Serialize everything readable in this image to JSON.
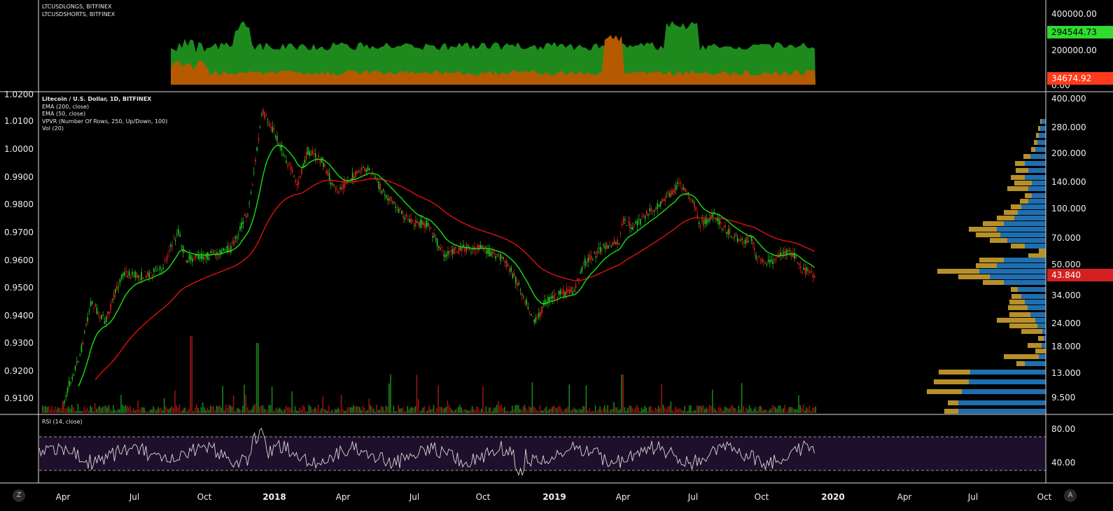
{
  "top_pane": {
    "legend": [
      "LTCUSDLONGS, BITFINEX",
      "LTCUSDSHORTS, BITFINEX"
    ],
    "axis_labels": [
      "400000.00",
      "200000.00",
      "0.00"
    ],
    "longs_value": "294544.73",
    "shorts_value": "34674.92",
    "colors": {
      "longs": "#1e8a1e",
      "shorts": "#b55a00",
      "longs_tag": "#2fdc2f",
      "shorts_tag": "#ff4422"
    }
  },
  "main_pane": {
    "legend": [
      "Litecoin / U.S. Dollar, 1D, BITFINEX",
      "EMA (200, close)",
      "EMA (50, close)",
      "VPVR (Number Of Rows, 250, Up/Down, 100)",
      "Vol (20)"
    ],
    "left_axis_labels": [
      "1.0200",
      "1.0100",
      "1.0000",
      "0.9900",
      "0.9800",
      "0.9700",
      "0.9600",
      "0.9500",
      "0.9400",
      "0.9300",
      "0.9200",
      "0.9100"
    ],
    "right_axis_labels": [
      "400.000",
      "280.000",
      "200.000",
      "140.000",
      "100.000",
      "70.000",
      "50.000",
      "34.000",
      "24.000",
      "18.000",
      "13.000",
      "9.500"
    ],
    "last_price": "43.840",
    "colors": {
      "up": "#26c626",
      "down": "#e02020",
      "ema200": "#e01010",
      "ema50": "#18e018",
      "vpvr_up": "#1f6fb0",
      "vpvr_down": "#b8902a",
      "last_tag": "#d42020"
    }
  },
  "rsi_pane": {
    "legend": "RSI (14, close)",
    "axis_labels": [
      "80.00",
      "40.00"
    ],
    "colors": {
      "band": "#1f0f2c",
      "line": "#d8d8d8"
    }
  },
  "time_axis": {
    "labels": [
      "Apr",
      "Jul",
      "Oct",
      "2018",
      "Apr",
      "Jul",
      "Oct",
      "2019",
      "Apr",
      "Jul",
      "Oct",
      "2020",
      "Apr",
      "Jul",
      "Oct"
    ]
  },
  "buttons": {
    "left": "Z",
    "right": "A"
  }
}
